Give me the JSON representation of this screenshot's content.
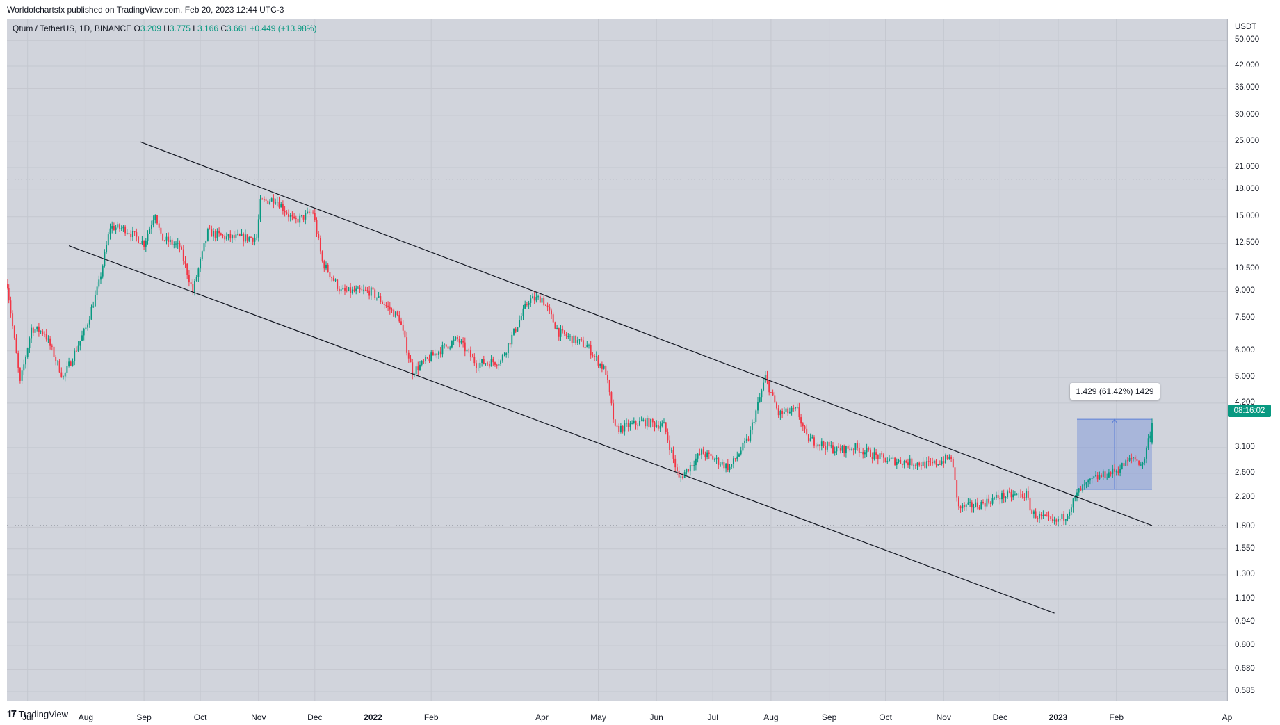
{
  "publisher_line": "Worldofchartsfx published on TradingView.com, Feb 20, 2023 12:44 UTC-3",
  "legend": {
    "symbol": "Qtum / TetherUS, 1D, BINANCE",
    "open_label": "O",
    "open": "3.209",
    "high_label": "H",
    "high": "3.775",
    "low_label": "L",
    "low": "3.166",
    "close_label": "C",
    "close": "3.661",
    "change": "+0.449 (+13.98%)"
  },
  "price_axis": {
    "currency": "USDT",
    "scale": "log",
    "labels": [
      "50.000",
      "42.000",
      "36.000",
      "30.000",
      "25.000",
      "21.000",
      "18.000",
      "15.000",
      "12.500",
      "10.500",
      "9.000",
      "7.500",
      "6.000",
      "5.000",
      "4.200",
      "3.100",
      "2.600",
      "2.200",
      "1.800",
      "1.550",
      "1.300",
      "1.100",
      "0.940",
      "0.800",
      "0.680",
      "0.585"
    ],
    "countdown": "08:16:02"
  },
  "time_axis": {
    "labels": [
      {
        "text": "Jul",
        "bold": false
      },
      {
        "text": "Aug",
        "bold": false
      },
      {
        "text": "Sep",
        "bold": false
      },
      {
        "text": "Oct",
        "bold": false
      },
      {
        "text": "Nov",
        "bold": false
      },
      {
        "text": "Dec",
        "bold": false
      },
      {
        "text": "2022",
        "bold": true
      },
      {
        "text": "Feb",
        "bold": false
      },
      {
        "text": "Apr",
        "bold": false
      },
      {
        "text": "May",
        "bold": false
      },
      {
        "text": "Jun",
        "bold": false
      },
      {
        "text": "Jul",
        "bold": false
      },
      {
        "text": "Aug",
        "bold": false
      },
      {
        "text": "Sep",
        "bold": false
      },
      {
        "text": "Oct",
        "bold": false
      },
      {
        "text": "Nov",
        "bold": false
      },
      {
        "text": "Dec",
        "bold": false
      },
      {
        "text": "2023",
        "bold": true
      },
      {
        "text": "Feb",
        "bold": false
      },
      {
        "text": "Ap",
        "bold": false
      }
    ]
  },
  "measure": {
    "label": "1.429 (61.42%) 1429",
    "from_price": 2.33,
    "to_price": 3.76,
    "from_date": "2023-01-11",
    "to_date": "2023-02-20",
    "color": "#5b7fd6"
  },
  "colors": {
    "up": "#089981",
    "down": "#f23645",
    "background": "#d1d4dc",
    "grid": "#c4c7cf",
    "trendline": "#131722"
  },
  "footer": {
    "brand": "TradingView"
  },
  "chart_data": {
    "type": "candlestick",
    "title": "Qtum / TetherUS, 1D, BINANCE",
    "scale": "log",
    "ylim": [
      0.55,
      58
    ],
    "xlim": [
      "2021-06-20",
      "2023-04-01"
    ],
    "horizontal_levels": [
      19.4,
      1.82
    ],
    "trendlines": [
      {
        "name": "upper-channel",
        "start": {
          "date": "2021-08-30",
          "price": 25.0
        },
        "end": {
          "date": "2023-02-20",
          "price": 1.82
        }
      },
      {
        "name": "lower-channel",
        "start": {
          "date": "2021-07-23",
          "price": 12.3
        },
        "end": {
          "date": "2022-12-30",
          "price": 1.0
        }
      }
    ],
    "price_path": [
      {
        "date": "2021-06-20",
        "price": 9.5
      },
      {
        "date": "2021-06-27",
        "price": 4.8
      },
      {
        "date": "2021-07-03",
        "price": 7.0
      },
      {
        "date": "2021-07-10",
        "price": 6.8
      },
      {
        "date": "2021-07-20",
        "price": 5.0
      },
      {
        "date": "2021-08-01",
        "price": 7.0
      },
      {
        "date": "2021-08-08",
        "price": 9.5
      },
      {
        "date": "2021-08-14",
        "price": 14.0
      },
      {
        "date": "2021-08-22",
        "price": 13.8
      },
      {
        "date": "2021-09-01",
        "price": 12.5
      },
      {
        "date": "2021-09-07",
        "price": 15.5
      },
      {
        "date": "2021-09-10",
        "price": 13.0
      },
      {
        "date": "2021-09-20",
        "price": 12.2
      },
      {
        "date": "2021-09-27",
        "price": 9.0
      },
      {
        "date": "2021-10-05",
        "price": 13.5
      },
      {
        "date": "2021-10-15",
        "price": 13.0
      },
      {
        "date": "2021-10-31",
        "price": 13.0
      },
      {
        "date": "2021-11-02",
        "price": 16.5
      },
      {
        "date": "2021-11-10",
        "price": 17.0
      },
      {
        "date": "2021-11-20",
        "price": 14.5
      },
      {
        "date": "2021-11-30",
        "price": 15.5
      },
      {
        "date": "2021-12-05",
        "price": 11.0
      },
      {
        "date": "2021-12-15",
        "price": 9.0
      },
      {
        "date": "2021-12-31",
        "price": 9.0
      },
      {
        "date": "2022-01-15",
        "price": 7.5
      },
      {
        "date": "2022-01-22",
        "price": 5.2
      },
      {
        "date": "2022-02-05",
        "price": 6.0
      },
      {
        "date": "2022-02-15",
        "price": 6.5
      },
      {
        "date": "2022-02-25",
        "price": 5.5
      },
      {
        "date": "2022-03-10",
        "price": 5.6
      },
      {
        "date": "2022-03-25",
        "price": 8.5
      },
      {
        "date": "2022-04-01",
        "price": 8.6
      },
      {
        "date": "2022-04-10",
        "price": 6.8
      },
      {
        "date": "2022-04-25",
        "price": 6.2
      },
      {
        "date": "2022-05-05",
        "price": 5.2
      },
      {
        "date": "2022-05-10",
        "price": 3.5
      },
      {
        "date": "2022-05-25",
        "price": 3.7
      },
      {
        "date": "2022-06-05",
        "price": 3.6
      },
      {
        "date": "2022-06-13",
        "price": 2.5
      },
      {
        "date": "2022-06-25",
        "price": 3.0
      },
      {
        "date": "2022-07-10",
        "price": 2.7
      },
      {
        "date": "2022-07-20",
        "price": 3.3
      },
      {
        "date": "2022-07-29",
        "price": 5.0
      },
      {
        "date": "2022-08-05",
        "price": 3.9
      },
      {
        "date": "2022-08-15",
        "price": 4.0
      },
      {
        "date": "2022-08-20",
        "price": 3.3
      },
      {
        "date": "2022-09-05",
        "price": 3.05
      },
      {
        "date": "2022-09-15",
        "price": 3.1
      },
      {
        "date": "2022-10-01",
        "price": 2.85
      },
      {
        "date": "2022-10-15",
        "price": 2.8
      },
      {
        "date": "2022-10-25",
        "price": 2.75
      },
      {
        "date": "2022-11-05",
        "price": 2.9
      },
      {
        "date": "2022-11-09",
        "price": 2.05
      },
      {
        "date": "2022-11-20",
        "price": 2.1
      },
      {
        "date": "2022-12-01",
        "price": 2.22
      },
      {
        "date": "2022-12-15",
        "price": 2.25
      },
      {
        "date": "2022-12-18",
        "price": 1.98
      },
      {
        "date": "2022-12-30",
        "price": 1.85
      },
      {
        "date": "2023-01-05",
        "price": 1.95
      },
      {
        "date": "2023-01-12",
        "price": 2.3
      },
      {
        "date": "2023-01-20",
        "price": 2.5
      },
      {
        "date": "2023-02-01",
        "price": 2.65
      },
      {
        "date": "2023-02-10",
        "price": 2.9
      },
      {
        "date": "2023-02-15",
        "price": 2.75
      },
      {
        "date": "2023-02-20",
        "price": 3.66
      }
    ],
    "last_candle": {
      "date": "2023-02-20",
      "open": 3.209,
      "high": 3.775,
      "low": 3.166,
      "close": 3.661
    }
  }
}
